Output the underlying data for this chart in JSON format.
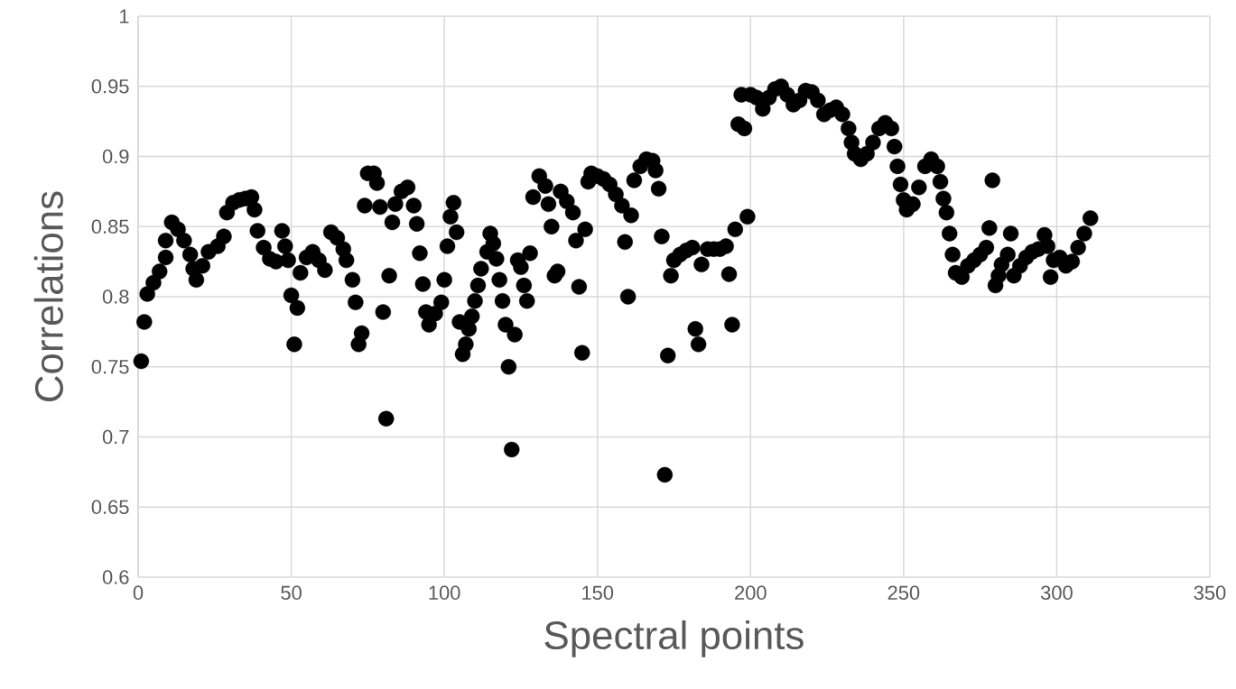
{
  "chart_data": {
    "type": "scatter",
    "xlabel": "Spectral points",
    "ylabel": "Correlations",
    "xlim": [
      0,
      350
    ],
    "ylim": [
      0.6,
      1
    ],
    "xticks": [
      0,
      50,
      100,
      150,
      200,
      250,
      300,
      350
    ],
    "yticks": [
      0.6,
      0.65,
      0.7,
      0.75,
      0.8,
      0.85,
      0.9,
      0.95,
      1
    ],
    "grid": true,
    "marker": "circle",
    "series": [
      {
        "color": "#000000",
        "x": [
          1,
          2,
          3,
          5,
          7,
          9,
          9,
          11,
          13,
          15,
          17,
          18,
          19,
          21,
          23,
          26,
          28,
          29,
          31,
          33,
          35,
          37,
          38,
          39,
          41,
          43,
          45,
          47,
          48,
          49,
          50,
          51,
          52,
          53,
          55,
          57,
          59,
          61,
          63,
          65,
          67,
          68,
          70,
          71,
          72,
          73,
          74,
          75,
          77,
          78,
          79,
          80,
          81,
          82,
          83,
          84,
          86,
          88,
          90,
          91,
          92,
          93,
          94,
          95,
          97,
          99,
          100,
          101,
          102,
          103,
          104,
          105,
          106,
          107,
          108,
          109,
          110,
          111,
          112,
          114,
          115,
          116,
          117,
          118,
          119,
          120,
          121,
          122,
          123,
          124,
          125,
          126,
          127,
          128,
          129,
          131,
          133,
          134,
          135,
          136,
          137,
          138,
          140,
          142,
          143,
          144,
          145,
          146,
          147,
          148,
          150,
          152,
          154,
          156,
          158,
          159,
          160,
          161,
          162,
          164,
          166,
          168,
          169,
          170,
          171,
          172,
          173,
          174,
          175,
          177,
          179,
          181,
          182,
          183,
          184,
          186,
          188,
          190,
          192,
          193,
          194,
          195,
          196,
          197,
          198,
          199,
          200,
          202,
          204,
          206,
          208,
          210,
          212,
          214,
          216,
          218,
          220,
          222,
          224,
          226,
          228,
          230,
          232,
          233,
          234,
          236,
          238,
          240,
          242,
          244,
          246,
          247,
          248,
          249,
          250,
          251,
          253,
          255,
          257,
          259,
          261,
          262,
          263,
          264,
          265,
          266,
          267,
          269,
          271,
          273,
          275,
          277,
          278,
          279,
          280,
          281,
          282,
          284,
          285,
          286,
          288,
          290,
          292,
          294,
          296,
          297,
          298,
          299,
          301,
          303,
          305,
          307,
          309,
          311
        ],
        "values": [
          0.754,
          0.782,
          0.802,
          0.81,
          0.818,
          0.828,
          0.84,
          0.853,
          0.848,
          0.84,
          0.83,
          0.82,
          0.812,
          0.822,
          0.832,
          0.836,
          0.843,
          0.86,
          0.867,
          0.869,
          0.87,
          0.871,
          0.862,
          0.847,
          0.835,
          0.827,
          0.825,
          0.847,
          0.836,
          0.826,
          0.801,
          0.766,
          0.792,
          0.817,
          0.828,
          0.832,
          0.826,
          0.819,
          0.846,
          0.842,
          0.834,
          0.826,
          0.812,
          0.796,
          0.766,
          0.774,
          0.865,
          0.888,
          0.888,
          0.881,
          0.864,
          0.789,
          0.713,
          0.815,
          0.853,
          0.866,
          0.875,
          0.878,
          0.865,
          0.852,
          0.831,
          0.809,
          0.789,
          0.78,
          0.788,
          0.796,
          0.812,
          0.836,
          0.857,
          0.867,
          0.846,
          0.782,
          0.759,
          0.766,
          0.777,
          0.786,
          0.797,
          0.808,
          0.82,
          0.832,
          0.845,
          0.838,
          0.827,
          0.812,
          0.797,
          0.78,
          0.75,
          0.691,
          0.773,
          0.826,
          0.821,
          0.808,
          0.797,
          0.831,
          0.871,
          0.886,
          0.879,
          0.866,
          0.85,
          0.815,
          0.818,
          0.875,
          0.868,
          0.86,
          0.84,
          0.807,
          0.76,
          0.848,
          0.882,
          0.888,
          0.886,
          0.884,
          0.88,
          0.873,
          0.865,
          0.839,
          0.8,
          0.858,
          0.883,
          0.893,
          0.898,
          0.897,
          0.89,
          0.877,
          0.843,
          0.673,
          0.758,
          0.815,
          0.826,
          0.83,
          0.833,
          0.835,
          0.777,
          0.766,
          0.823,
          0.834,
          0.834,
          0.834,
          0.836,
          0.816,
          0.78,
          0.848,
          0.923,
          0.944,
          0.92,
          0.857,
          0.944,
          0.942,
          0.934,
          0.942,
          0.948,
          0.95,
          0.944,
          0.937,
          0.94,
          0.947,
          0.946,
          0.94,
          0.93,
          0.933,
          0.935,
          0.93,
          0.92,
          0.91,
          0.902,
          0.898,
          0.902,
          0.91,
          0.92,
          0.924,
          0.92,
          0.907,
          0.893,
          0.88,
          0.869,
          0.862,
          0.866,
          0.878,
          0.893,
          0.898,
          0.893,
          0.882,
          0.87,
          0.86,
          0.845,
          0.83,
          0.817,
          0.814,
          0.822,
          0.826,
          0.83,
          0.835,
          0.849,
          0.883,
          0.808,
          0.815,
          0.823,
          0.83,
          0.845,
          0.815,
          0.822,
          0.828,
          0.832,
          0.834,
          0.844,
          0.836,
          0.814,
          0.826,
          0.828,
          0.822,
          0.825,
          0.835,
          0.845,
          0.856
        ]
      }
    ]
  }
}
